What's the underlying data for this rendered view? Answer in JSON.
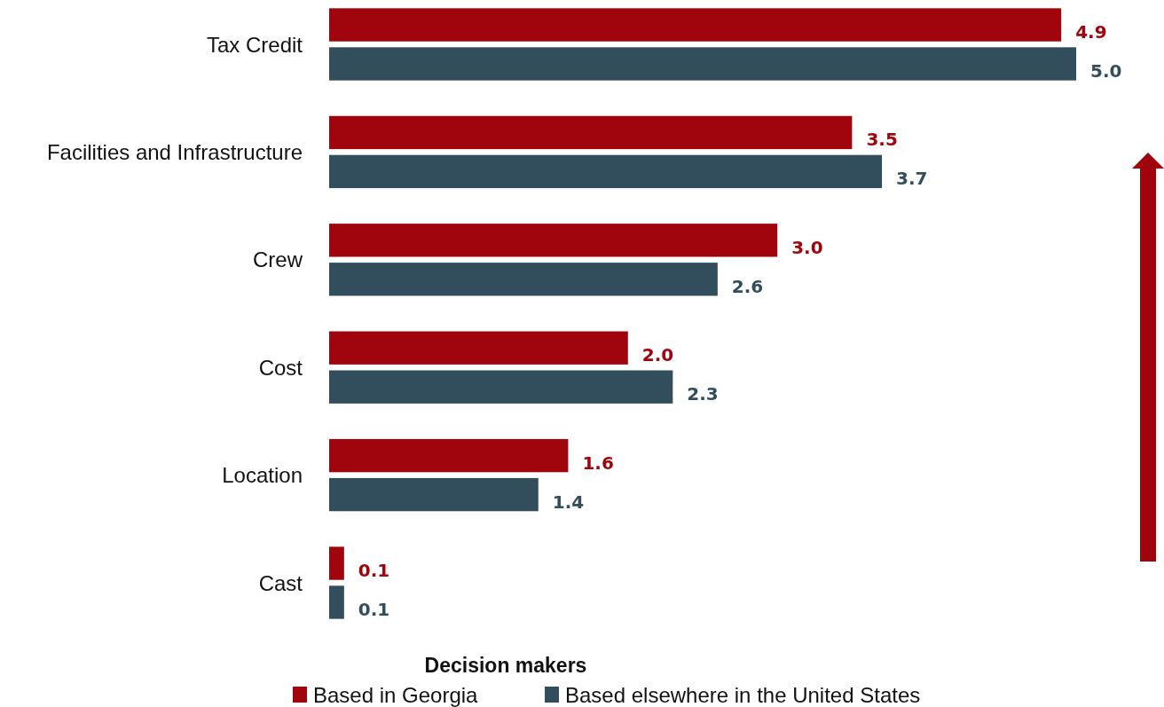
{
  "chart_data": {
    "type": "bar",
    "orientation": "horizontal",
    "categories": [
      "Tax Credit",
      "Facilities and Infrastructure",
      "Crew",
      "Cost ",
      "Location",
      "Cast"
    ],
    "series": [
      {
        "name": "Based in Georgia",
        "color": "#a0050e",
        "values": [
          4.9,
          3.5,
          3.0,
          2.0,
          1.6,
          0.1
        ],
        "value_labels": [
          "4.9",
          "3.5",
          "3.0",
          "2.0",
          "1.6",
          "0.1"
        ]
      },
      {
        "name": "Based elsewhere in the United States",
        "color": "#324e5c",
        "values": [
          5.0,
          3.7,
          2.6,
          2.3,
          1.4,
          0.1
        ],
        "value_labels": [
          "5.0",
          "3.7",
          "2.6",
          "2.3",
          "1.4",
          "0.1"
        ]
      }
    ],
    "legend": "bottom",
    "legend_title": "Decision makers",
    "grid": false
  }
}
